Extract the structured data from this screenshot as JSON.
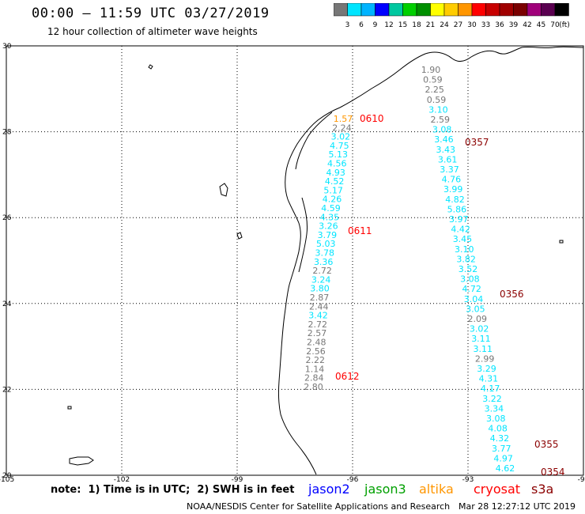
{
  "header": {
    "title": "00:00 – 11:59 UTC 03/27/2019",
    "subtitle": "12 hour collection of altimeter wave heights"
  },
  "colorbar": {
    "colors": [
      "#777777",
      "#00e5ff",
      "#00b4ff",
      "#0000ff",
      "#00c8a0",
      "#00d000",
      "#009000",
      "#ffff00",
      "#ffcc00",
      "#ff9600",
      "#ff0000",
      "#c80000",
      "#a00000",
      "#7a0000",
      "#a0007a",
      "#5a0050",
      "#000000"
    ],
    "labels": [
      "3",
      "6",
      "9",
      "12",
      "15",
      "18",
      "21",
      "24",
      "27",
      "30",
      "33",
      "36",
      "39",
      "42",
      "45",
      "70"
    ],
    "unit": "(ft)"
  },
  "map": {
    "lat_labels": [
      "30",
      "28",
      "26",
      "24",
      "22",
      "20"
    ],
    "lon_labels": [
      "-105",
      "-102",
      "-99",
      "-96",
      "-93",
      "-90"
    ],
    "pass_labels": [
      {
        "text": "0610",
        "color": "#ff0000"
      },
      {
        "text": "0611",
        "color": "#ff0000"
      },
      {
        "text": "0612",
        "color": "#ff0000"
      },
      {
        "text": "0357",
        "color": "#8b0000"
      },
      {
        "text": "0356",
        "color": "#8b0000"
      },
      {
        "text": "0355",
        "color": "#8b0000"
      },
      {
        "text": "0354",
        "color": "#8b0000"
      }
    ],
    "track1": {
      "values": [
        "1.57",
        "2.24",
        "3.02",
        "4.75",
        "5.13",
        "4.56",
        "4.93",
        "4.52",
        "5.17",
        "4.26",
        "4.59",
        "4.35",
        "3.26",
        "3.79",
        "5.03",
        "3.78",
        "3.36",
        "2.72",
        "3.24",
        "3.80",
        "2.87",
        "2.44",
        "3.42",
        "2.72",
        "2.57",
        "2.48",
        "2.56",
        "2.22",
        "1.14",
        "2.84",
        "2.80"
      ],
      "colors": [
        "#ff9600",
        "#777777",
        "#00e5ff",
        "#00e5ff",
        "#00e5ff",
        "#00e5ff",
        "#00e5ff",
        "#00e5ff",
        "#00e5ff",
        "#00e5ff",
        "#00e5ff",
        "#00e5ff",
        "#00e5ff",
        "#00e5ff",
        "#00e5ff",
        "#00e5ff",
        "#00e5ff",
        "#777777",
        "#00e5ff",
        "#00e5ff",
        "#777777",
        "#777777",
        "#00e5ff",
        "#777777",
        "#777777",
        "#777777",
        "#777777",
        "#777777",
        "#777777",
        "#777777",
        "#777777"
      ]
    },
    "track2": {
      "values": [
        "1.90",
        "0.59",
        "2.25",
        "0.59",
        "3.10",
        "2.59",
        "3.08",
        "3.46",
        "3.43",
        "3.61",
        "3.37",
        "4.76",
        "3.99",
        "4.82",
        "5.86",
        "3.97",
        "4.42",
        "3.45",
        "3.10",
        "3.82",
        "3.52",
        "3.08",
        "4.72",
        "3.04",
        "3.05",
        "2.09",
        "3.02",
        "3.11",
        "3.11",
        "2.99",
        "3.29",
        "4.31",
        "4.17",
        "3.22",
        "3.34",
        "3.08",
        "4.08",
        "4.32",
        "3.77",
        "4.97",
        "4.62"
      ],
      "colors": [
        "#777777",
        "#777777",
        "#777777",
        "#777777",
        "#00e5ff",
        "#777777",
        "#00e5ff",
        "#00e5ff",
        "#00e5ff",
        "#00e5ff",
        "#00e5ff",
        "#00e5ff",
        "#00e5ff",
        "#00e5ff",
        "#00e5ff",
        "#00e5ff",
        "#00e5ff",
        "#00e5ff",
        "#00e5ff",
        "#00e5ff",
        "#00e5ff",
        "#00e5ff",
        "#00e5ff",
        "#00e5ff",
        "#00e5ff",
        "#777777",
        "#00e5ff",
        "#00e5ff",
        "#00e5ff",
        "#777777",
        "#00e5ff",
        "#00e5ff",
        "#00e5ff",
        "#00e5ff",
        "#00e5ff",
        "#00e5ff",
        "#00e5ff",
        "#00e5ff",
        "#00e5ff",
        "#00e5ff",
        "#00e5ff"
      ]
    }
  },
  "footer": {
    "note": "note:  1) Time is in UTC;  2) SWH is in feet",
    "legend": [
      {
        "text": "jason2",
        "color": "#0000ff"
      },
      {
        "text": "jason3",
        "color": "#00a000"
      },
      {
        "text": "altika",
        "color": "#ff9600"
      },
      {
        "text": "cryosat",
        "color": "#ff0000"
      },
      {
        "text": "s3a",
        "color": "#8b0000"
      }
    ],
    "source": "NOAA/NESDIS Center for Satellite Applications and Research",
    "timestamp": "Mar 28 12:27:12 UTC 2019"
  }
}
